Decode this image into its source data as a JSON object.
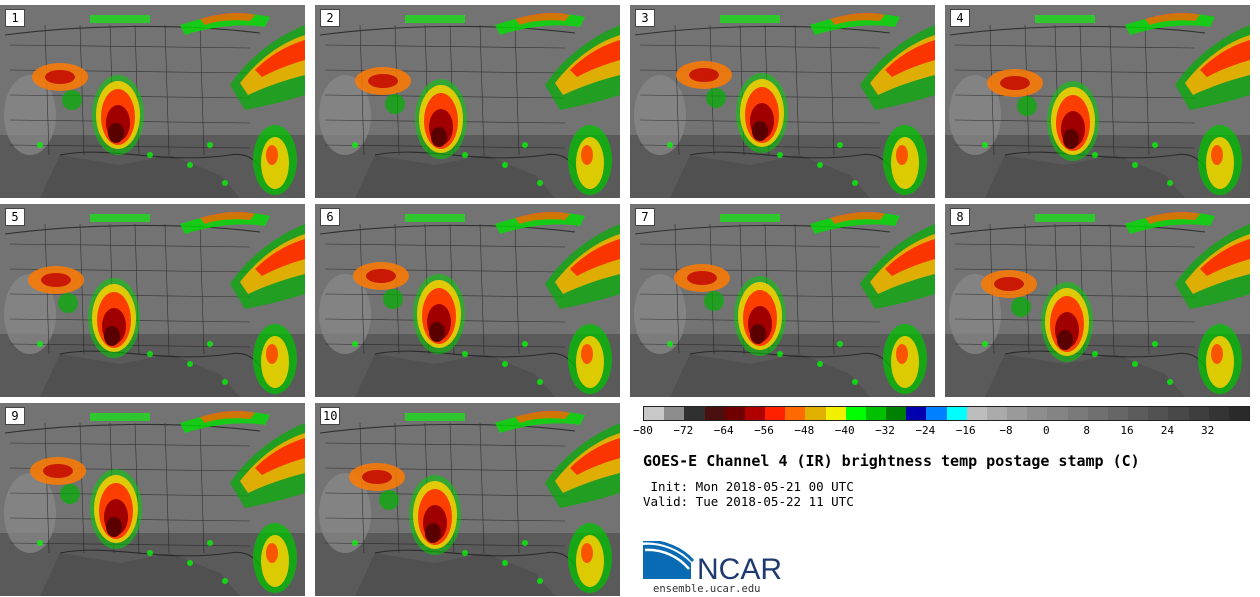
{
  "panels": [
    "1",
    "2",
    "3",
    "4",
    "5",
    "6",
    "7",
    "8",
    "9",
    "10"
  ],
  "colorbar": {
    "colors": [
      "#c8c8c8",
      "#8c8c8c",
      "#303030",
      "#4a1010",
      "#700000",
      "#b00000",
      "#ff2000",
      "#ff6a00",
      "#e0b000",
      "#f0f000",
      "#00ff00",
      "#00c000",
      "#008000",
      "#0000b0",
      "#0080ff",
      "#00ffff",
      "#bdbdbd",
      "#aaaaaa",
      "#9a9a9a",
      "#8e8e8e",
      "#848484",
      "#7a7a7a",
      "#707070",
      "#666666",
      "#5c5c5c",
      "#525252",
      "#484848",
      "#3e3e3e",
      "#343434",
      "#2a2a2a"
    ],
    "ticks": [
      "−80",
      "−72",
      "−64",
      "−56",
      "−48",
      "−40",
      "−32",
      "−24",
      "−16",
      "−8",
      "0",
      "8",
      "16",
      "24",
      "32"
    ]
  },
  "title": "GOES-E Channel 4 (IR) brightness temp postage stamp (C)",
  "init": " Init: Mon 2018-05-21 00 UTC",
  "valid": "Valid: Tue 2018-05-22 11 UTC",
  "logo_text": "NCAR",
  "website": "ensemble.ucar.edu"
}
